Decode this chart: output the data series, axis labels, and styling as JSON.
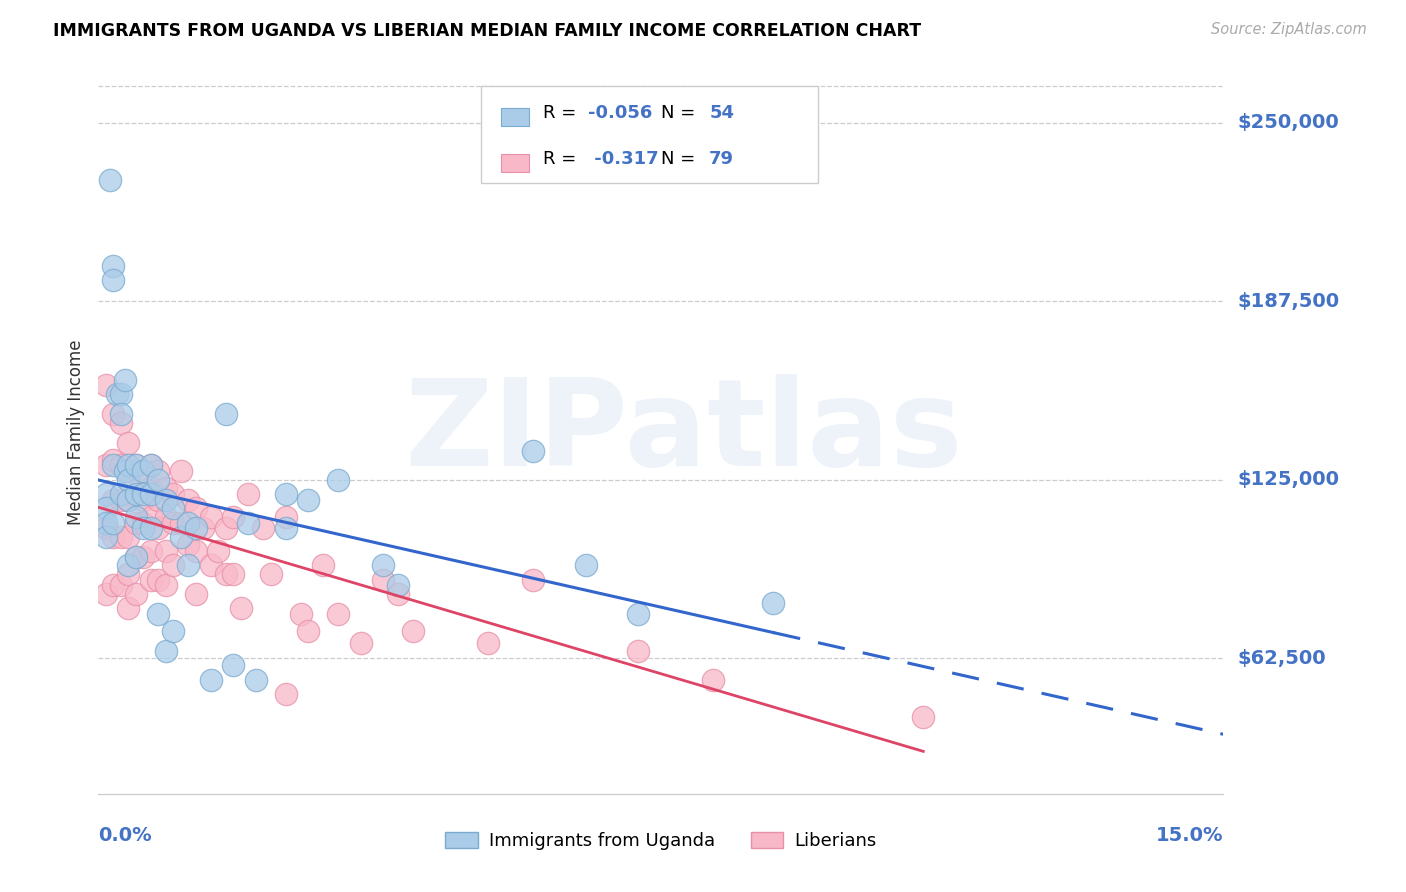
{
  "title": "IMMIGRANTS FROM UGANDA VS LIBERIAN MEDIAN FAMILY INCOME CORRELATION CHART",
  "source": "Source: ZipAtlas.com",
  "ylabel": "Median Family Income",
  "ytick_values": [
    62500,
    125000,
    187500,
    250000
  ],
  "ytick_labels": [
    "$62,500",
    "$125,000",
    "$187,500",
    "$250,000"
  ],
  "xmin": 0.0,
  "xmax": 0.15,
  "ymin": 15000,
  "ymax": 268000,
  "watermark_text": "ZIPatlas",
  "legend_r1": "-0.056",
  "legend_n1": "54",
  "legend_r2": "-0.317",
  "legend_n2": "79",
  "legend_label1": "Immigrants from Uganda",
  "legend_label2": "Liberians",
  "uganda_fill_color": "#aacce8",
  "liberia_fill_color": "#f8b8c8",
  "uganda_edge_color": "#7aaad0",
  "liberia_edge_color": "#e890a8",
  "uganda_trend_color": "#3366cc",
  "liberia_trend_color": "#dd4466",
  "axis_label_color": "#4472c4",
  "text_color": "#333333",
  "grid_color": "#cccccc",
  "uganda_x": [
    0.001,
    0.001,
    0.001,
    0.001,
    0.0015,
    0.002,
    0.002,
    0.002,
    0.002,
    0.0025,
    0.003,
    0.003,
    0.003,
    0.0035,
    0.0035,
    0.004,
    0.004,
    0.004,
    0.004,
    0.005,
    0.005,
    0.005,
    0.005,
    0.006,
    0.006,
    0.006,
    0.007,
    0.007,
    0.007,
    0.008,
    0.008,
    0.009,
    0.009,
    0.01,
    0.01,
    0.011,
    0.012,
    0.012,
    0.013,
    0.015,
    0.017,
    0.018,
    0.02,
    0.021,
    0.025,
    0.025,
    0.028,
    0.032,
    0.038,
    0.04,
    0.058,
    0.065,
    0.072,
    0.09
  ],
  "uganda_y": [
    120000,
    115000,
    110000,
    105000,
    230000,
    200000,
    195000,
    130000,
    110000,
    155000,
    155000,
    148000,
    120000,
    160000,
    128000,
    130000,
    125000,
    118000,
    95000,
    130000,
    120000,
    112000,
    98000,
    128000,
    120000,
    108000,
    130000,
    120000,
    108000,
    125000,
    78000,
    118000,
    65000,
    115000,
    72000,
    105000,
    110000,
    95000,
    108000,
    55000,
    148000,
    60000,
    110000,
    55000,
    120000,
    108000,
    118000,
    125000,
    95000,
    88000,
    135000,
    95000,
    78000,
    82000
  ],
  "liberia_x": [
    0.001,
    0.001,
    0.001,
    0.001,
    0.002,
    0.002,
    0.002,
    0.002,
    0.002,
    0.003,
    0.003,
    0.003,
    0.003,
    0.003,
    0.004,
    0.004,
    0.004,
    0.004,
    0.004,
    0.004,
    0.005,
    0.005,
    0.005,
    0.005,
    0.005,
    0.006,
    0.006,
    0.006,
    0.006,
    0.007,
    0.007,
    0.007,
    0.007,
    0.007,
    0.008,
    0.008,
    0.008,
    0.008,
    0.009,
    0.009,
    0.009,
    0.009,
    0.01,
    0.01,
    0.01,
    0.011,
    0.011,
    0.012,
    0.012,
    0.013,
    0.013,
    0.013,
    0.014,
    0.015,
    0.015,
    0.016,
    0.017,
    0.017,
    0.018,
    0.018,
    0.019,
    0.02,
    0.022,
    0.023,
    0.025,
    0.025,
    0.027,
    0.028,
    0.03,
    0.032,
    0.035,
    0.038,
    0.04,
    0.042,
    0.052,
    0.058,
    0.072,
    0.082,
    0.11
  ],
  "liberia_y": [
    158000,
    130000,
    108000,
    85000,
    148000,
    132000,
    118000,
    105000,
    88000,
    145000,
    130000,
    118000,
    105000,
    88000,
    138000,
    128000,
    118000,
    105000,
    92000,
    80000,
    130000,
    120000,
    110000,
    98000,
    85000,
    128000,
    118000,
    110000,
    98000,
    130000,
    122000,
    112000,
    100000,
    90000,
    128000,
    118000,
    108000,
    90000,
    122000,
    112000,
    100000,
    88000,
    120000,
    110000,
    95000,
    128000,
    110000,
    118000,
    102000,
    115000,
    100000,
    85000,
    108000,
    112000,
    95000,
    100000,
    108000,
    92000,
    112000,
    92000,
    80000,
    120000,
    108000,
    92000,
    112000,
    50000,
    78000,
    72000,
    95000,
    78000,
    68000,
    90000,
    85000,
    72000,
    68000,
    90000,
    65000,
    55000,
    42000
  ]
}
